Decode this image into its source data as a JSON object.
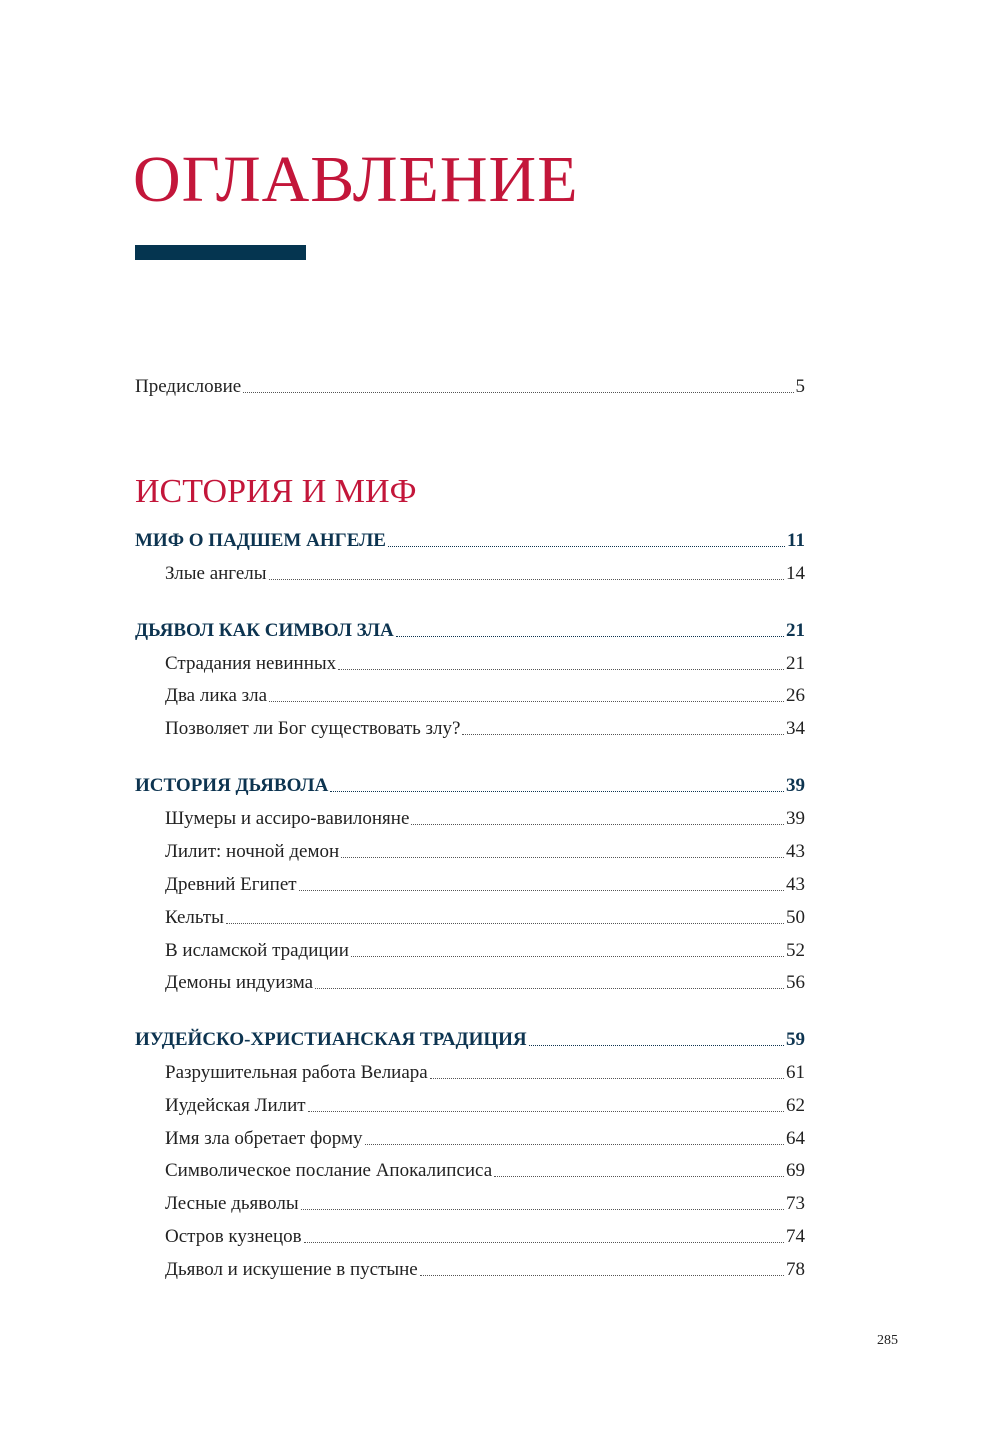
{
  "title": "ОГЛАВЛЕНИЕ",
  "colors": {
    "title": "#c3163a",
    "accent_bar": "#053550",
    "chapter": "#0d3450"
  },
  "preface": {
    "label": "Предисловие",
    "page": "5"
  },
  "section": "ИСТОРИЯ И МИФ",
  "chapters": [
    {
      "label": "МИФ О ПАДШЕМ АНГЕЛЕ",
      "page": "11",
      "items": [
        {
          "label": "Злые ангелы",
          "page": "14"
        }
      ]
    },
    {
      "label": "ДЬЯВОЛ КАК СИМВОЛ ЗЛА",
      "page": "21",
      "items": [
        {
          "label": "Страдания невинных",
          "page": "21"
        },
        {
          "label": "Два лика зла",
          "page": "26"
        },
        {
          "label": "Позволяет ли Бог существовать злу?",
          "page": "34"
        }
      ]
    },
    {
      "label": "ИСТОРИЯ ДЬЯВОЛА",
      "page": "39",
      "items": [
        {
          "label": "Шумеры и ассиро-вавилоняне",
          "page": "39"
        },
        {
          "label": "Лилит: ночной демон",
          "page": "43"
        },
        {
          "label": "Древний Египет",
          "page": "43"
        },
        {
          "label": "Кельты",
          "page": "50"
        },
        {
          "label": "В исламской традиции",
          "page": "52"
        },
        {
          "label": "Демоны индуизма",
          "page": "56"
        }
      ]
    },
    {
      "label": "ИУДЕЙСКО-ХРИСТИАНСКАЯ ТРАДИЦИЯ",
      "page": "59",
      "items": [
        {
          "label": "Разрушительная работа Велиара",
          "page": "61"
        },
        {
          "label": "Иудейская Лилит",
          "page": "62"
        },
        {
          "label": "Имя зла обретает форму",
          "page": "64"
        },
        {
          "label": "Символическое послание Апокалипсиса",
          "page": "69"
        },
        {
          "label": "Лесные дьяволы",
          "page": "73"
        },
        {
          "label": "Остров кузнецов",
          "page": "74"
        },
        {
          "label": "Дьявол и искушение в пустыне",
          "page": "78"
        }
      ]
    }
  ],
  "page_number": "285"
}
